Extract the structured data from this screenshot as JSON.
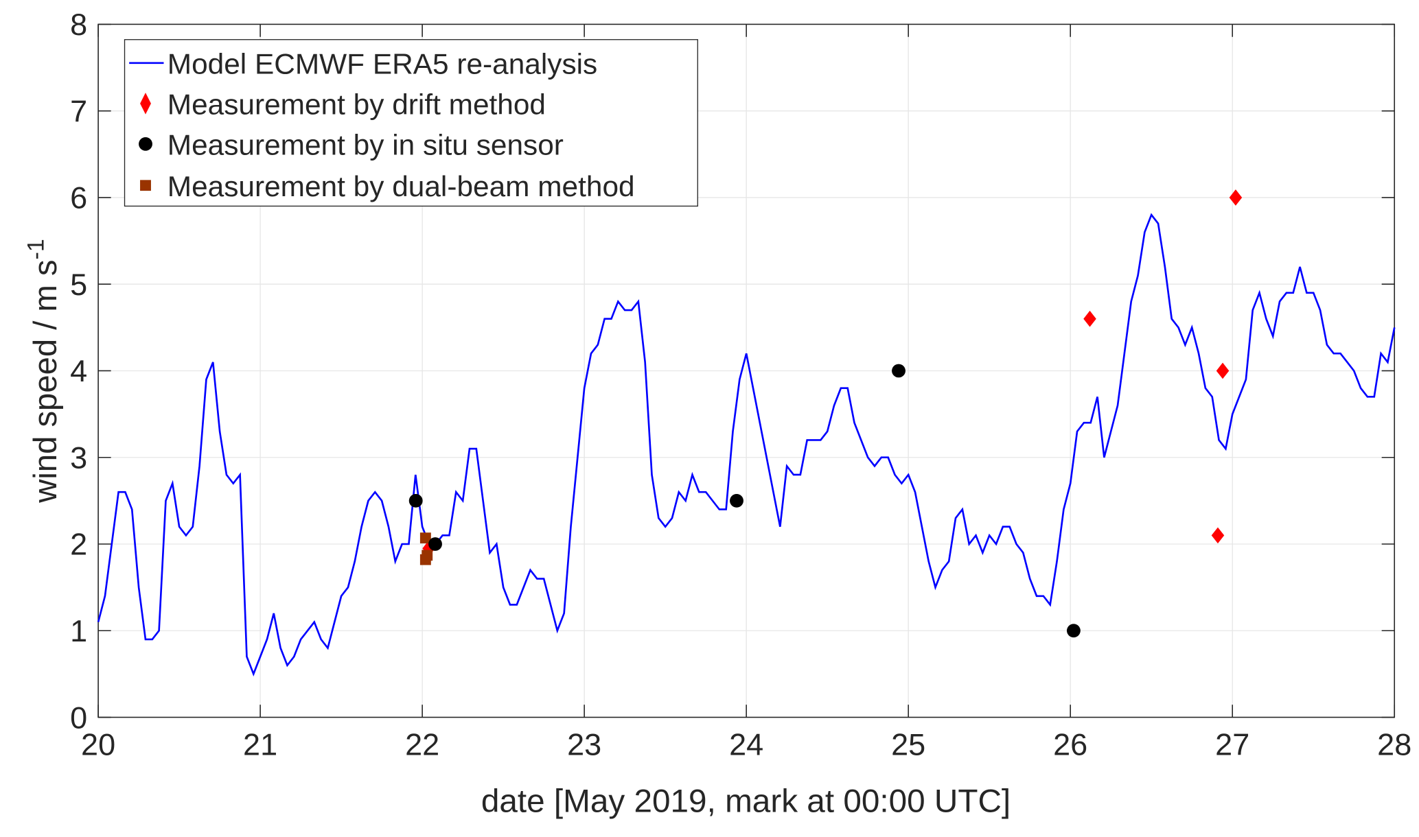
{
  "chart_data": {
    "type": "line",
    "xlabel": "date [May 2019, mark at 00:00 UTC]",
    "ylabel": "wind speed / m s",
    "ylabel_superscript": "-1",
    "xlim": [
      20,
      28
    ],
    "ylim": [
      0,
      8
    ],
    "xticks": [
      "20",
      "21",
      "22",
      "23",
      "24",
      "25",
      "26",
      "27",
      "28"
    ],
    "yticks": [
      "0",
      "1",
      "2",
      "3",
      "4",
      "5",
      "6",
      "7",
      "8"
    ],
    "grid": true,
    "legend_position": "top-left",
    "legend": [
      "Model ECMWF ERA5 re-analysis",
      "Measurement by drift method",
      "Measurement by in situ sensor",
      "Measurement by dual-beam method"
    ],
    "colors": {
      "model": "#0000ff",
      "drift": "#ff0000",
      "insitu": "#000000",
      "dualbeam": "#993300"
    },
    "model_series": {
      "name": "Model ECMWF ERA5 re-analysis",
      "x_start": 20,
      "x_step_days": 0.041667,
      "values": [
        1.1,
        1.4,
        2.0,
        2.6,
        2.6,
        2.4,
        1.5,
        0.9,
        0.9,
        1.0,
        2.5,
        2.7,
        2.2,
        2.1,
        2.2,
        2.9,
        3.9,
        4.1,
        3.3,
        2.8,
        2.7,
        2.8,
        0.7,
        0.5,
        0.7,
        0.9,
        1.2,
        0.8,
        0.6,
        0.7,
        0.9,
        1.0,
        1.1,
        0.9,
        0.8,
        1.1,
        1.4,
        1.5,
        1.8,
        2.2,
        2.5,
        2.6,
        2.5,
        2.2,
        1.8,
        2.0,
        2.0,
        2.8,
        2.2,
        2.0,
        2.0,
        2.1,
        2.1,
        2.6,
        2.5,
        3.1,
        3.1,
        2.5,
        1.9,
        2.0,
        1.5,
        1.3,
        1.3,
        1.5,
        1.7,
        1.6,
        1.6,
        1.3,
        1.0,
        1.2,
        2.2,
        3.0,
        3.8,
        4.2,
        4.3,
        4.6,
        4.6,
        4.8,
        4.7,
        4.7,
        4.8,
        4.1,
        2.8,
        2.3,
        2.2,
        2.3,
        2.6,
        2.5,
        2.8,
        2.6,
        2.6,
        2.5,
        2.4,
        2.4,
        3.3,
        3.9,
        4.2,
        3.8,
        3.4,
        3.0,
        2.6,
        2.2,
        2.9,
        2.8,
        2.8,
        3.2,
        3.2,
        3.2,
        3.3,
        3.6,
        3.8,
        3.8,
        3.4,
        3.2,
        3.0,
        2.9,
        3.0,
        3.0,
        2.8,
        2.7,
        2.8,
        2.6,
        2.2,
        1.8,
        1.5,
        1.7,
        1.8,
        2.3,
        2.4,
        2.0,
        2.1,
        1.9,
        2.1,
        2.0,
        2.2,
        2.2,
        2.0,
        1.9,
        1.6,
        1.4,
        1.4,
        1.3,
        1.8,
        2.4,
        2.7,
        3.3,
        3.4,
        3.4,
        3.7,
        3.0,
        3.3,
        3.6,
        4.2,
        4.8,
        5.1,
        5.6,
        5.8,
        5.7,
        5.2,
        4.6,
        4.5,
        4.3,
        4.5,
        4.2,
        3.8,
        3.7,
        3.2,
        3.1,
        3.5,
        3.7,
        3.9,
        4.7,
        4.9,
        4.6,
        4.4,
        4.8,
        4.9,
        4.9,
        5.2,
        4.9,
        4.9,
        4.7,
        4.3,
        4.2,
        4.2,
        4.1,
        4.0,
        3.8,
        3.7,
        3.7,
        4.2,
        4.1,
        4.5
      ]
    },
    "drift_points": [
      [
        22.04,
        1.95
      ],
      [
        26.12,
        4.6
      ],
      [
        26.91,
        2.1
      ],
      [
        26.94,
        4.0
      ],
      [
        27.02,
        6.0
      ]
    ],
    "insitu_points": [
      [
        21.96,
        2.5
      ],
      [
        22.08,
        2.0
      ],
      [
        23.94,
        2.5
      ],
      [
        24.94,
        4.0
      ],
      [
        26.02,
        1.0
      ]
    ],
    "dualbeam_points": [
      [
        22.02,
        2.07
      ],
      [
        22.03,
        1.87
      ],
      [
        22.02,
        1.82
      ]
    ]
  }
}
